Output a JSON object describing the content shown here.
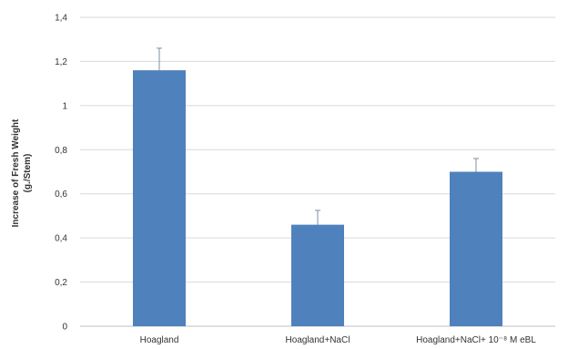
{
  "chart_data": {
    "type": "bar",
    "categories": [
      "Hoagland",
      "Hoagland+NaCl",
      "Hoagland+NaCl+ 10⁻⁸ M eBL"
    ],
    "values": [
      1.16,
      0.46,
      0.7
    ],
    "error_bars": [
      0.1,
      0.065,
      0.06
    ],
    "ylabel_line1": "Increase of Fresh Weight",
    "ylabel_line2": "(g./Stem)",
    "ylim": [
      0,
      1.4
    ],
    "yticks": [
      0,
      0.2,
      0.4,
      0.6,
      0.8,
      1.0,
      1.2,
      1.4
    ],
    "ytick_labels": [
      "0",
      "0,2",
      "0,4",
      "0,6",
      "0,8",
      "1",
      "1,2",
      "1,4"
    ],
    "grid": true,
    "bar_color": "#4f81bd",
    "grid_color": "#d9d9d9"
  }
}
